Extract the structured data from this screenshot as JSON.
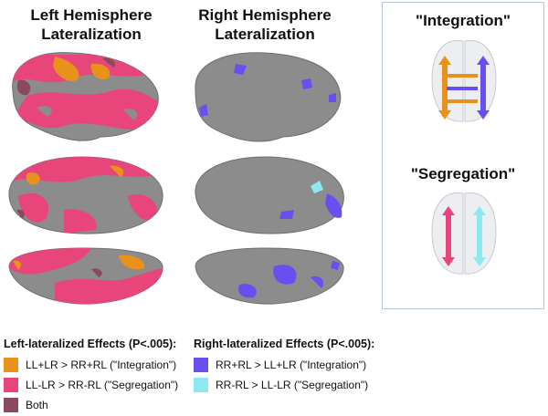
{
  "columns": {
    "left": {
      "line1": "Left Hemisphere",
      "line2": "Lateralization"
    },
    "right": {
      "line1": "Right Hemisphere",
      "line2": "Lateralization"
    }
  },
  "panel": {
    "integration_title": "\"Integration\"",
    "segregation_title": "\"Segregation\""
  },
  "legend": {
    "left": {
      "heading": "Left-lateralized Effects (P<.005):",
      "items": [
        {
          "label": "LL+LR > RR+RL (\"Integration\")",
          "color": "#e8921c"
        },
        {
          "label": "LL-LR > RR-RL (\"Segregation\")",
          "color": "#e8457a"
        },
        {
          "label": "Both",
          "color": "#8a4a5e"
        }
      ]
    },
    "right": {
      "heading": "Right-lateralized Effects (P<.005):",
      "items": [
        {
          "label": "RR+RL > LL+LR (\"Integration\")",
          "color": "#6a4ff0"
        },
        {
          "label": "RR-RL > LL-LR (\"Segregation\")",
          "color": "#8ee8f4"
        }
      ]
    }
  },
  "colors": {
    "brain_gray": "#8c8c8c",
    "brain_gray_dark": "#6e6e6e",
    "orange": "#e8921c",
    "pink": "#e8457a",
    "both": "#8a4a5e",
    "violet": "#6a4ff0",
    "cyan": "#8ee8f4",
    "panel_border": "#b7c7d7"
  }
}
